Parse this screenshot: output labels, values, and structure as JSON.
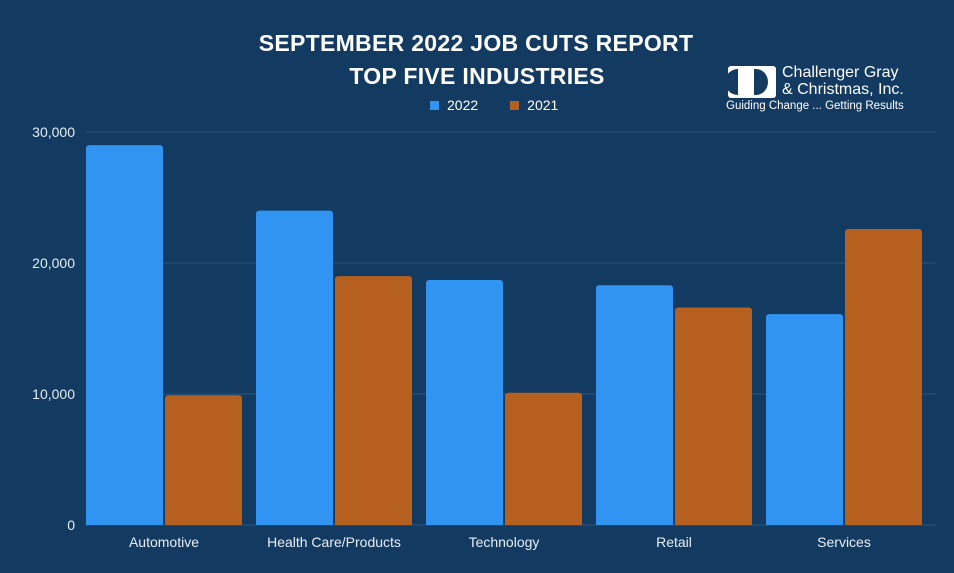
{
  "chart_data": {
    "type": "bar",
    "title": "SEPTEMBER 2022 JOB CUTS REPORT",
    "subtitle": "TOP FIVE INDUSTRIES",
    "categories": [
      "Automotive",
      "Health Care/Products",
      "Technology",
      "Retail",
      "Services"
    ],
    "series": [
      {
        "name": "2022",
        "color": "#3294f2",
        "values": [
          29000,
          24000,
          18700,
          18300,
          16100
        ]
      },
      {
        "name": "2021",
        "color": "#b5601e",
        "values": [
          9900,
          19000,
          10100,
          16600,
          22600
        ]
      }
    ],
    "ylim": [
      0,
      30000
    ],
    "yticks": [
      0,
      10000,
      20000,
      30000
    ],
    "ytick_labels": [
      "0",
      "10,000",
      "20,000",
      "30,000"
    ],
    "grid": true,
    "legend_position": "top-center"
  },
  "brand": {
    "name": "Challenger Gray\n& Christmas, Inc.",
    "tagline": "Guiding Change ... Getting Results",
    "logo_icon": "challenger-logo-icon"
  },
  "colors": {
    "background": "#133a61",
    "gridline": "#2b5680",
    "text": "#ffffff"
  }
}
